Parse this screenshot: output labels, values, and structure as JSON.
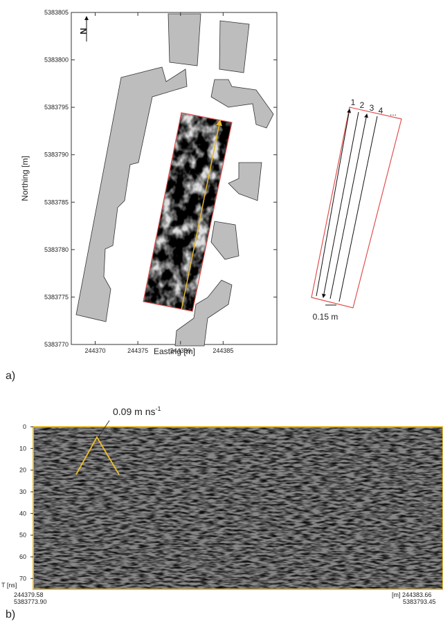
{
  "panel_a": {
    "label": "a)",
    "north": "N",
    "x_axis": {
      "label": "Easting [m]",
      "lim": [
        244367.2,
        244391.3
      ],
      "ticks": [
        244370,
        244375,
        244380,
        244385
      ]
    },
    "y_axis": {
      "label": "Northing [m]",
      "lim": [
        5383770,
        5383805
      ],
      "ticks": [
        5383770,
        5383775,
        5383780,
        5383785,
        5383790,
        5383795,
        5383800,
        5383805
      ]
    },
    "profiles": [
      "1",
      "2",
      "3",
      "4",
      "..."
    ],
    "spacing": "0.15 m"
  },
  "panel_b": {
    "label": "b)",
    "velocity": "0.09 m ns",
    "velocity_exp": "-1",
    "y_axis": {
      "label": "T [ns]",
      "lim": [
        0,
        75
      ],
      "ticks": [
        0,
        10,
        20,
        30,
        40,
        50,
        60,
        70
      ]
    },
    "start": [
      "244379.58",
      "5383773.90"
    ],
    "end": [
      "[m] 244383.66",
      "5383793.45"
    ]
  }
}
